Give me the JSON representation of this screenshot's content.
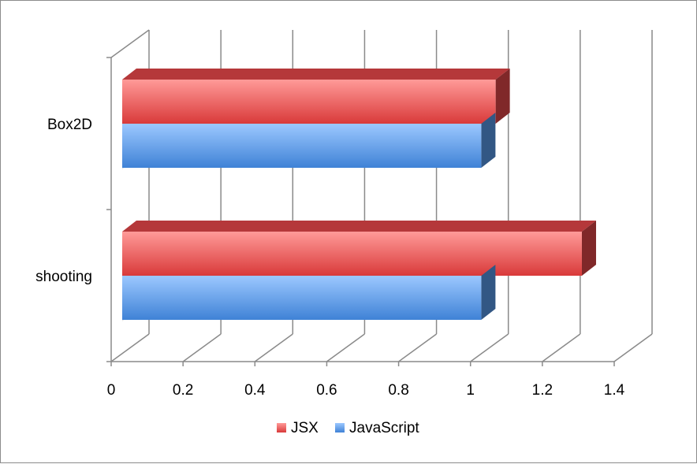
{
  "chart_data": {
    "type": "bar",
    "orientation": "horizontal",
    "style": "3d-clustered",
    "categories": [
      "Box2D",
      "shooting"
    ],
    "series": [
      {
        "name": "JSX",
        "values": [
          1.07,
          1.31
        ],
        "color": "#e8484a"
      },
      {
        "name": "JavaScript",
        "values": [
          1.03,
          1.03
        ],
        "color": "#5b9ff0"
      }
    ],
    "xlim": [
      0,
      1.4
    ],
    "xticks": [
      "0",
      "0.2",
      "0.4",
      "0.6",
      "0.8",
      "1",
      "1.2",
      "1.4"
    ],
    "grid": true,
    "legend_position": "bottom"
  }
}
